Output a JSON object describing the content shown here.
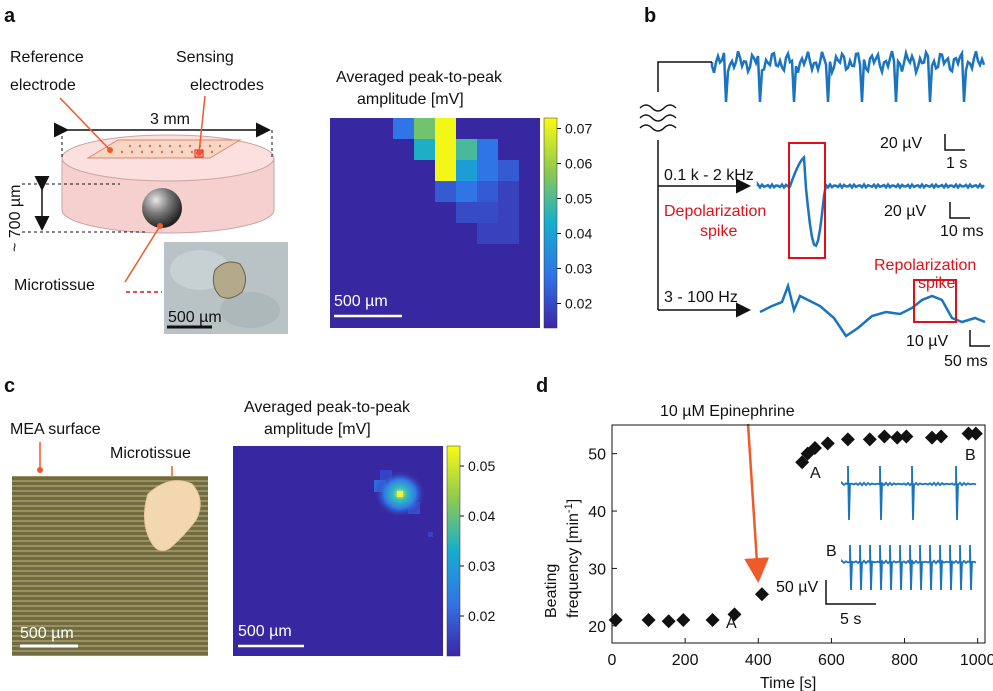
{
  "panels": {
    "a": "a",
    "b": "b",
    "c": "c",
    "d": "d"
  },
  "panel_a": {
    "ref_electrode_1": "Reference",
    "ref_electrode_2": "electrode",
    "sensing_1": "Sensing",
    "sensing_2": "electrodes",
    "width": "3 mm",
    "height": "~ 700 µm",
    "microtissue": "Microtissue",
    "photo_scale": "500 µm",
    "heatmap_title_1": "Averaged peak-to-peak",
    "heatmap_title_2": "amplitude [mV]",
    "heatmap_scale": "500 µm",
    "colorbar_ticks": [
      "0.07",
      "0.06",
      "0.05",
      "0.04",
      "0.03",
      "0.02"
    ],
    "heatmap_cells": [
      [
        0,
        0,
        0,
        0.03,
        0.055,
        0.072,
        0,
        0,
        0,
        0
      ],
      [
        0,
        0,
        0,
        0,
        0.045,
        0.072,
        0.05,
        0.03,
        0,
        0
      ],
      [
        0,
        0,
        0,
        0,
        0,
        0.072,
        0.04,
        0.03,
        0.025,
        0
      ],
      [
        0,
        0,
        0,
        0,
        0,
        0.025,
        0.03,
        0.025,
        0.02,
        0
      ],
      [
        0,
        0,
        0,
        0,
        0,
        0,
        0.022,
        0.022,
        0.02,
        0
      ],
      [
        0,
        0,
        0,
        0,
        0,
        0,
        0,
        0.02,
        0.02,
        0
      ]
    ]
  },
  "panel_b": {
    "raw_scale_v": "20 µV",
    "raw_scale_t": "1 s",
    "band_high": "0.1 k - 2 kHz",
    "depol_1": "Depolarization",
    "depol_2": "spike",
    "high_scale_v": "20 µV",
    "high_scale_t": "10 ms",
    "band_low": "3 - 100 Hz",
    "repol_1": "Repolarization",
    "repol_2": "spike",
    "low_scale_v": "10 µV",
    "low_scale_t": "50 ms"
  },
  "panel_c": {
    "mea_surface": "MEA surface",
    "microtissue": "Microtissue",
    "photo_scale": "500 µm",
    "heatmap_title_1": "Averaged peak-to-peak",
    "heatmap_title_2": "amplitude [mV]",
    "heatmap_scale": "500 µm",
    "colorbar_ticks": [
      "0.05",
      "0.04",
      "0.03",
      "0.02"
    ]
  },
  "panel_d": {
    "drug_label": "10 µM Epinephrine",
    "trace_a": "A",
    "trace_b": "B",
    "inset_a": "A",
    "inset_b": "B",
    "inset_scale_v": "50 µV",
    "inset_scale_t": "5 s"
  },
  "chart_data": {
    "type": "scatter",
    "xlabel": "Time [s]",
    "ylabel_1": "Beating",
    "ylabel_2": "frequency [min",
    "ylabel_sup": "-1",
    "ylabel_end": "]",
    "xlim": [
      0,
      1020
    ],
    "ylim": [
      17,
      55
    ],
    "xticks": [
      "0",
      "200",
      "400",
      "600",
      "800",
      "1000"
    ],
    "yticks": [
      "20",
      "30",
      "40",
      "50"
    ],
    "x": [
      10,
      100,
      155,
      195,
      275,
      335,
      410,
      520,
      535,
      555,
      590,
      645,
      705,
      745,
      780,
      805,
      875,
      900,
      975,
      995
    ],
    "y": [
      21,
      21,
      20.8,
      21,
      21,
      22,
      25.5,
      48.5,
      50,
      51,
      51.8,
      52.5,
      52.5,
      53,
      52.8,
      53,
      52.8,
      53,
      53.5,
      53.5
    ]
  }
}
